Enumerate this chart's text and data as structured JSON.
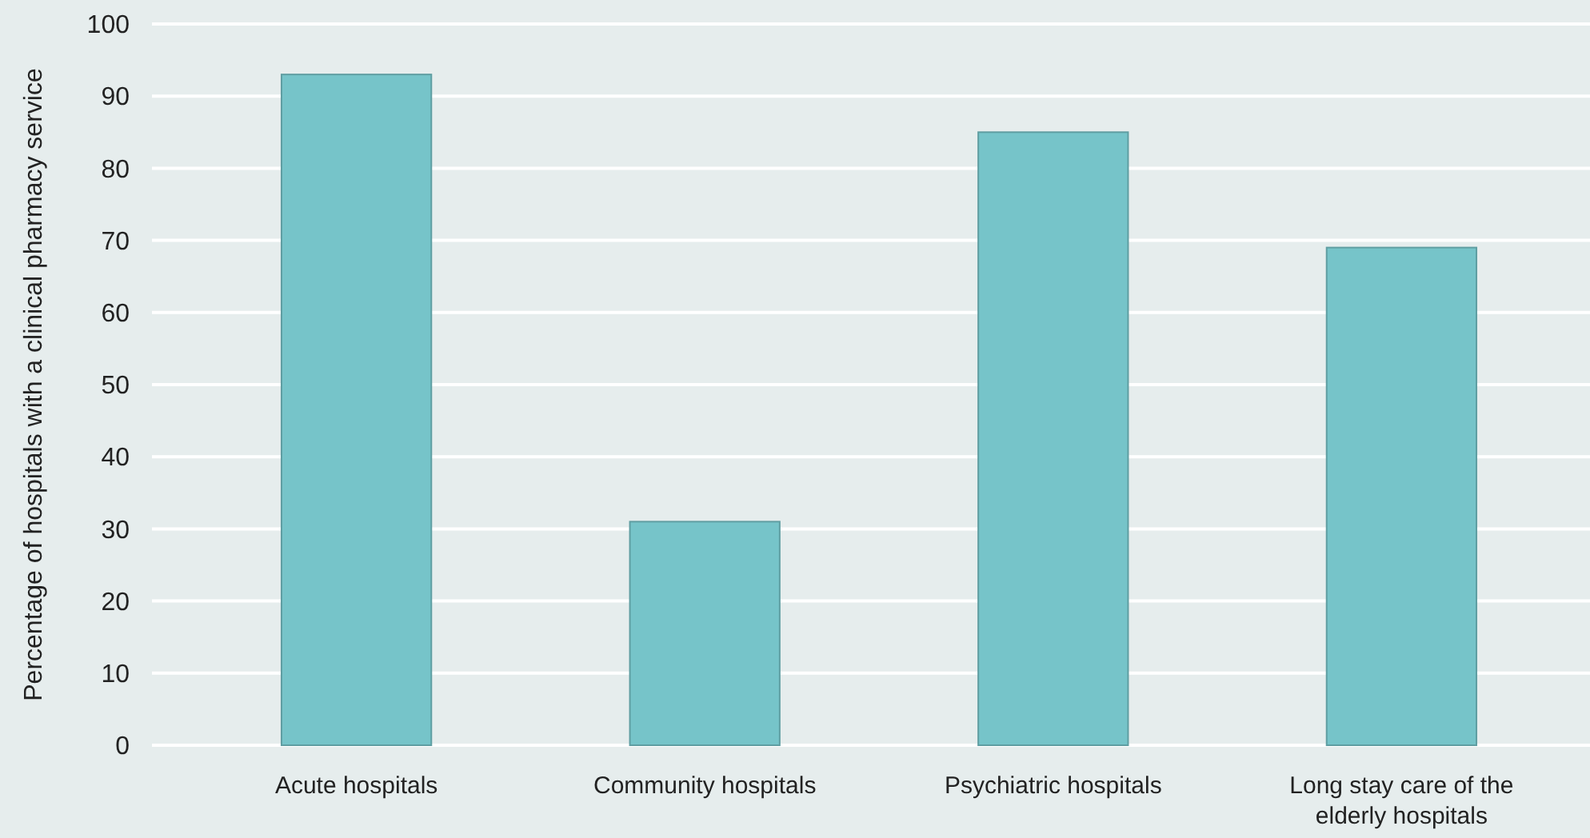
{
  "chart_data": {
    "type": "bar",
    "ylabel": "Percentage of hospitals with a clinical pharmacy service",
    "categories": [
      "Acute hospitals",
      "Community hospitals",
      "Psychiatric hospitals",
      "Long stay care of the elderly hospitals"
    ],
    "values": [
      93,
      31,
      85,
      69
    ],
    "color": "#76c4c9",
    "ylim": [
      0,
      100
    ],
    "yticks": [
      0,
      10,
      20,
      30,
      40,
      50,
      60,
      70,
      80,
      90,
      100
    ],
    "grid": "y"
  }
}
